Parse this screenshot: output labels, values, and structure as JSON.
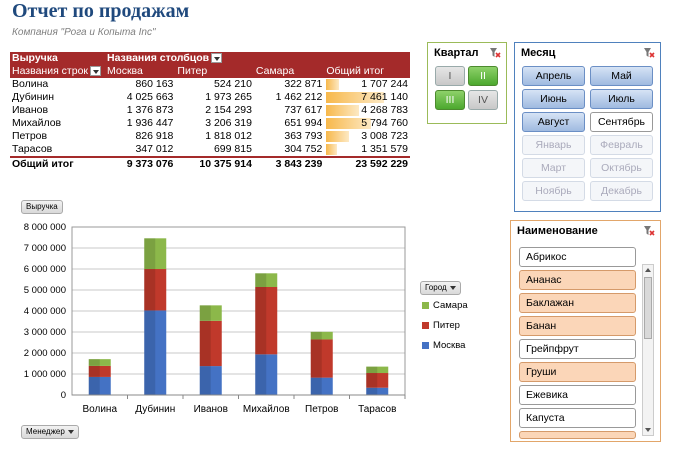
{
  "title": "Отчет по продажам",
  "subtitle": "Компания \"Рога и Копыта Inc\"",
  "pivot": {
    "measure": "Выручка",
    "col_field": "Названия столбцов",
    "row_field": "Названия строк",
    "columns": [
      "Москва",
      "Питер",
      "Самара",
      "Общий итог"
    ],
    "rows": [
      {
        "name": "Волина",
        "values": [
          "860 163",
          "524 210",
          "322 871",
          "1 707 244"
        ],
        "total": 1707244
      },
      {
        "name": "Дубинин",
        "values": [
          "4 025 663",
          "1 973 265",
          "1 462 212",
          "7 461 140"
        ],
        "total": 7461140
      },
      {
        "name": "Иванов",
        "values": [
          "1 376 873",
          "2 154 293",
          "737 617",
          "4 268 783"
        ],
        "total": 4268783
      },
      {
        "name": "Михайлов",
        "values": [
          "1 936 447",
          "3 206 319",
          "651 994",
          "5 794 760"
        ],
        "total": 5794760
      },
      {
        "name": "Петров",
        "values": [
          "826 918",
          "1 818 012",
          "363 793",
          "3 008 723"
        ],
        "total": 3008723
      },
      {
        "name": "Тарасов",
        "values": [
          "347 012",
          "699 815",
          "304 752",
          "1 351 579"
        ],
        "total": 1351579
      }
    ],
    "grand_total_label": "Общий итог",
    "grand_total": [
      "9 373 076",
      "10 375 914",
      "3 843 239",
      "23 592 229"
    ]
  },
  "slicers": {
    "quarter": {
      "title": "Квартал",
      "items": [
        {
          "label": "I",
          "state": "off"
        },
        {
          "label": "II",
          "state": "on"
        },
        {
          "label": "III",
          "state": "on"
        },
        {
          "label": "IV",
          "state": "off"
        }
      ]
    },
    "month": {
      "title": "Месяц",
      "items": [
        {
          "label": "Апрель",
          "state": "on"
        },
        {
          "label": "Май",
          "state": "on"
        },
        {
          "label": "Июнь",
          "state": "on"
        },
        {
          "label": "Июль",
          "state": "on"
        },
        {
          "label": "Август",
          "state": "on"
        },
        {
          "label": "Сентябрь",
          "state": "plain"
        },
        {
          "label": "Январь",
          "state": "dis"
        },
        {
          "label": "Февраль",
          "state": "dis"
        },
        {
          "label": "Март",
          "state": "dis"
        },
        {
          "label": "Октябрь",
          "state": "dis"
        },
        {
          "label": "Ноябрь",
          "state": "dis"
        },
        {
          "label": "Декабрь",
          "state": "dis"
        }
      ]
    },
    "name": {
      "title": "Наименование",
      "items": [
        {
          "label": "Абрикос",
          "state": "plain"
        },
        {
          "label": "Ананас",
          "state": "on"
        },
        {
          "label": "Баклажан",
          "state": "on"
        },
        {
          "label": "Банан",
          "state": "on"
        },
        {
          "label": "Грейпфрут",
          "state": "plain"
        },
        {
          "label": "Груши",
          "state": "on"
        },
        {
          "label": "Ежевика",
          "state": "plain"
        },
        {
          "label": "Капуста",
          "state": "plain"
        },
        {
          "label": "",
          "state": "on"
        }
      ]
    }
  },
  "chart_buttons": {
    "measure": "Выручка",
    "legend_field": "Город",
    "axis_field": "Менеджер"
  },
  "colors": {
    "header": "#a42a2a",
    "moscow": "#4472c4",
    "piter": "#c0392b",
    "samara": "#8cb84a"
  },
  "chart_data": {
    "type": "bar",
    "stacked": true,
    "categories": [
      "Волина",
      "Дубинин",
      "Иванов",
      "Михайлов",
      "Петров",
      "Тарасов"
    ],
    "series": [
      {
        "name": "Москва",
        "values": [
          860163,
          4025663,
          1376873,
          1936447,
          826918,
          347012
        ]
      },
      {
        "name": "Питер",
        "values": [
          524210,
          1973265,
          2154293,
          3206319,
          1818012,
          699815
        ]
      },
      {
        "name": "Самара",
        "values": [
          322871,
          1462212,
          737617,
          651994,
          363793,
          304752
        ]
      }
    ],
    "ylim": [
      0,
      8000000
    ],
    "yticks": [
      "0",
      "1 000 000",
      "2 000 000",
      "3 000 000",
      "4 000 000",
      "5 000 000",
      "6 000 000",
      "7 000 000",
      "8 000 000"
    ],
    "legend": [
      "Самара",
      "Питер",
      "Москва"
    ],
    "legend_position": "right",
    "grid": true
  }
}
